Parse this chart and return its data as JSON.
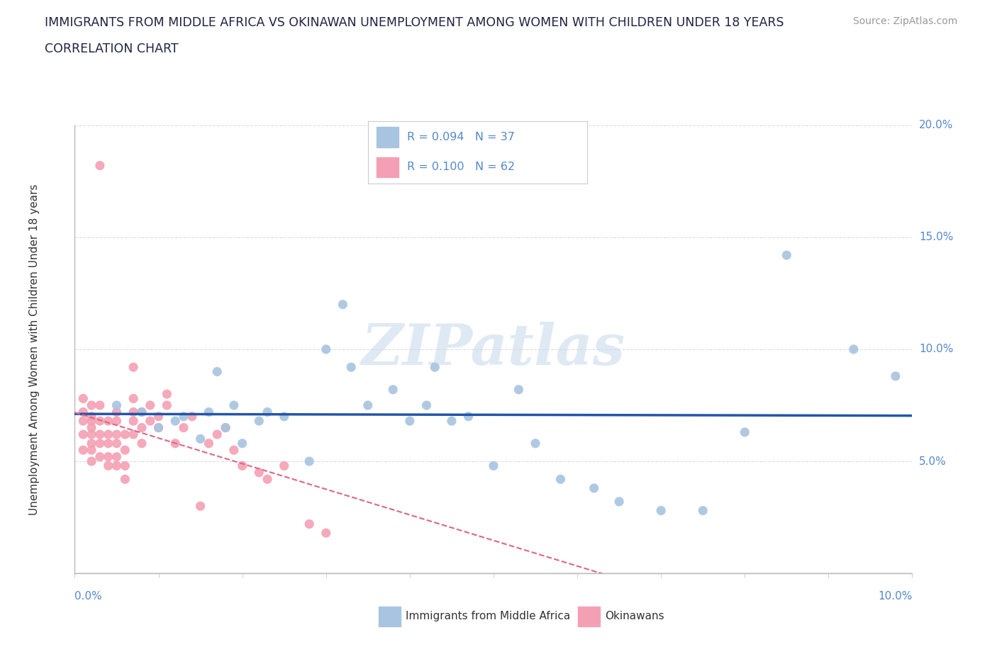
{
  "title_line1": "IMMIGRANTS FROM MIDDLE AFRICA VS OKINAWAN UNEMPLOYMENT AMONG WOMEN WITH CHILDREN UNDER 18 YEARS",
  "title_line2": "CORRELATION CHART",
  "source": "Source: ZipAtlas.com",
  "xlabel_bottom_left": "0.0%",
  "xlabel_bottom_right": "10.0%",
  "ylabel": "Unemployment Among Women with Children Under 18 years",
  "series1_label": "Immigrants from Middle Africa",
  "series2_label": "Okinawans",
  "series1_R": "R = 0.094",
  "series1_N": "N = 37",
  "series2_R": "R = 0.100",
  "series2_N": "N = 62",
  "series1_color": "#a8c4e0",
  "series2_color": "#f4a0b4",
  "series1_line_color": "#2255aa",
  "series2_line_color": "#dd6688",
  "watermark_text": "ZIPatlas",
  "background_color": "#ffffff",
  "axis_color": "#bbbbbb",
  "grid_color": "#dddddd",
  "text_color": "#5588cc",
  "title_color": "#222244",
  "source_color": "#999999",
  "xlim": [
    0.0,
    0.1
  ],
  "ylim": [
    0.0,
    0.2
  ],
  "yticks": [
    0.0,
    0.05,
    0.1,
    0.15,
    0.2
  ],
  "ytick_labels": [
    "",
    "5.0%",
    "10.0%",
    "15.0%",
    "20.0%"
  ],
  "series1_x": [
    0.005,
    0.008,
    0.01,
    0.012,
    0.013,
    0.015,
    0.016,
    0.017,
    0.018,
    0.019,
    0.02,
    0.022,
    0.023,
    0.025,
    0.028,
    0.03,
    0.032,
    0.033,
    0.035,
    0.038,
    0.04,
    0.042,
    0.043,
    0.045,
    0.047,
    0.05,
    0.053,
    0.055,
    0.058,
    0.062,
    0.065,
    0.07,
    0.075,
    0.08,
    0.085,
    0.093,
    0.098
  ],
  "series1_y": [
    0.075,
    0.072,
    0.065,
    0.068,
    0.07,
    0.06,
    0.072,
    0.09,
    0.065,
    0.075,
    0.058,
    0.068,
    0.072,
    0.07,
    0.05,
    0.1,
    0.12,
    0.092,
    0.075,
    0.082,
    0.068,
    0.075,
    0.092,
    0.068,
    0.07,
    0.048,
    0.082,
    0.058,
    0.042,
    0.038,
    0.032,
    0.028,
    0.028,
    0.063,
    0.142,
    0.1,
    0.088
  ],
  "series2_x": [
    0.001,
    0.001,
    0.001,
    0.001,
    0.001,
    0.002,
    0.002,
    0.002,
    0.002,
    0.002,
    0.002,
    0.002,
    0.002,
    0.003,
    0.003,
    0.003,
    0.003,
    0.003,
    0.003,
    0.004,
    0.004,
    0.004,
    0.004,
    0.004,
    0.005,
    0.005,
    0.005,
    0.005,
    0.005,
    0.005,
    0.006,
    0.006,
    0.006,
    0.006,
    0.007,
    0.007,
    0.007,
    0.007,
    0.007,
    0.008,
    0.008,
    0.008,
    0.009,
    0.009,
    0.01,
    0.01,
    0.011,
    0.011,
    0.012,
    0.013,
    0.014,
    0.015,
    0.016,
    0.017,
    0.018,
    0.019,
    0.02,
    0.022,
    0.023,
    0.025,
    0.028,
    0.03
  ],
  "series2_y": [
    0.068,
    0.072,
    0.078,
    0.062,
    0.055,
    0.058,
    0.062,
    0.065,
    0.07,
    0.075,
    0.05,
    0.055,
    0.068,
    0.052,
    0.058,
    0.062,
    0.068,
    0.075,
    0.182,
    0.048,
    0.052,
    0.058,
    0.062,
    0.068,
    0.048,
    0.052,
    0.058,
    0.062,
    0.068,
    0.072,
    0.042,
    0.048,
    0.055,
    0.062,
    0.062,
    0.068,
    0.072,
    0.078,
    0.092,
    0.058,
    0.065,
    0.072,
    0.068,
    0.075,
    0.065,
    0.07,
    0.075,
    0.08,
    0.058,
    0.065,
    0.07,
    0.03,
    0.058,
    0.062,
    0.065,
    0.055,
    0.048,
    0.045,
    0.042,
    0.048,
    0.022,
    0.018
  ]
}
